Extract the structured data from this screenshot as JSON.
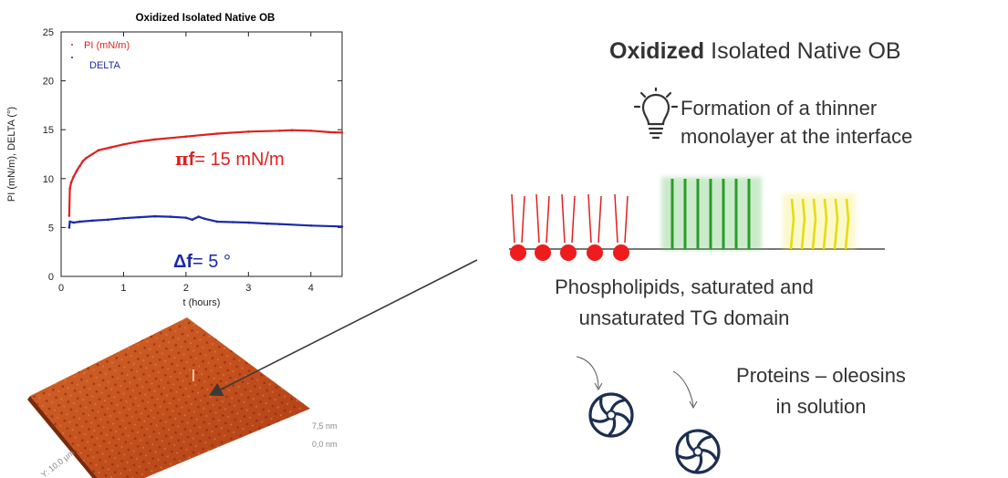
{
  "chart_data": {
    "type": "scatter",
    "title": "Oxidized Isolated Native OB",
    "xlabel": "t  (hours)",
    "ylabel": "PI (mN/m), DELTA (°)",
    "xlim": [
      0,
      4.5
    ],
    "ylim": [
      0,
      25
    ],
    "xticks": [
      0,
      1,
      2,
      3,
      4
    ],
    "yticks": [
      0,
      5,
      10,
      15,
      20,
      25
    ],
    "grid": false,
    "legend": "top-left",
    "series": [
      {
        "name": "PI (mN/m)",
        "color": "#e02020",
        "points": [
          [
            0.13,
            6.2
          ],
          [
            0.14,
            9.0
          ],
          [
            0.16,
            9.6
          ],
          [
            0.2,
            10.2
          ],
          [
            0.25,
            10.8
          ],
          [
            0.3,
            11.3
          ],
          [
            0.35,
            11.8
          ],
          [
            0.4,
            12.1
          ],
          [
            0.5,
            12.5
          ],
          [
            0.6,
            12.9
          ],
          [
            0.8,
            13.2
          ],
          [
            1.0,
            13.5
          ],
          [
            1.25,
            13.8
          ],
          [
            1.5,
            14.0
          ],
          [
            2.0,
            14.3
          ],
          [
            2.5,
            14.6
          ],
          [
            3.0,
            14.8
          ],
          [
            3.5,
            14.9
          ],
          [
            3.7,
            14.95
          ],
          [
            4.0,
            14.9
          ],
          [
            4.3,
            14.75
          ],
          [
            4.5,
            14.7
          ]
        ]
      },
      {
        "name": "DELTA",
        "color": "#1a2aa8",
        "points": [
          [
            0.13,
            5.0
          ],
          [
            0.14,
            5.6
          ],
          [
            0.2,
            5.5
          ],
          [
            0.3,
            5.6
          ],
          [
            0.5,
            5.7
          ],
          [
            0.75,
            5.8
          ],
          [
            1.0,
            5.95
          ],
          [
            1.25,
            6.05
          ],
          [
            1.5,
            6.15
          ],
          [
            1.75,
            6.1
          ],
          [
            2.0,
            6.0
          ],
          [
            2.1,
            5.8
          ],
          [
            2.2,
            6.1
          ],
          [
            2.3,
            5.9
          ],
          [
            2.5,
            5.6
          ],
          [
            2.75,
            5.55
          ],
          [
            3.0,
            5.5
          ],
          [
            3.3,
            5.4
          ],
          [
            3.5,
            5.35
          ],
          [
            4.0,
            5.2
          ],
          [
            4.5,
            5.1
          ]
        ]
      }
    ],
    "annotations": {
      "pi_symbol": "π",
      "pi_label": "f",
      "pi_value": "= 15 mN/m",
      "delta_symbol": "Δ",
      "delta_label": "f",
      "delta_value": "= 5 °"
    }
  },
  "heading": {
    "bold": "Oxidized",
    "rest": " Isolated Native OB"
  },
  "note": {
    "line1": "Formation of a thinner",
    "line2": "monolayer at the interface"
  },
  "captions": {
    "phospholipids_line1": "Phospholipids, saturated and",
    "phospholipids_line2": "unsaturated TG domain",
    "proteins_line1": "Proteins – oleosins",
    "proteins_line2": "in solution"
  },
  "afm": {
    "height_max": "7,5 nm",
    "height_min": "0,0 nm",
    "y_axis": "Y: 10,0 µm"
  },
  "colors": {
    "pi": "#e02020",
    "delta": "#1a2aa8",
    "afm_surface": "#c4501e",
    "phospholipid": "#e02020",
    "saturated_tg": "#2a9d2a",
    "unsaturated_tg": "#e8e020",
    "protein": "#1c2f52"
  },
  "icons": {
    "idea": "lightbulb-icon",
    "protein": "protein-icon"
  }
}
